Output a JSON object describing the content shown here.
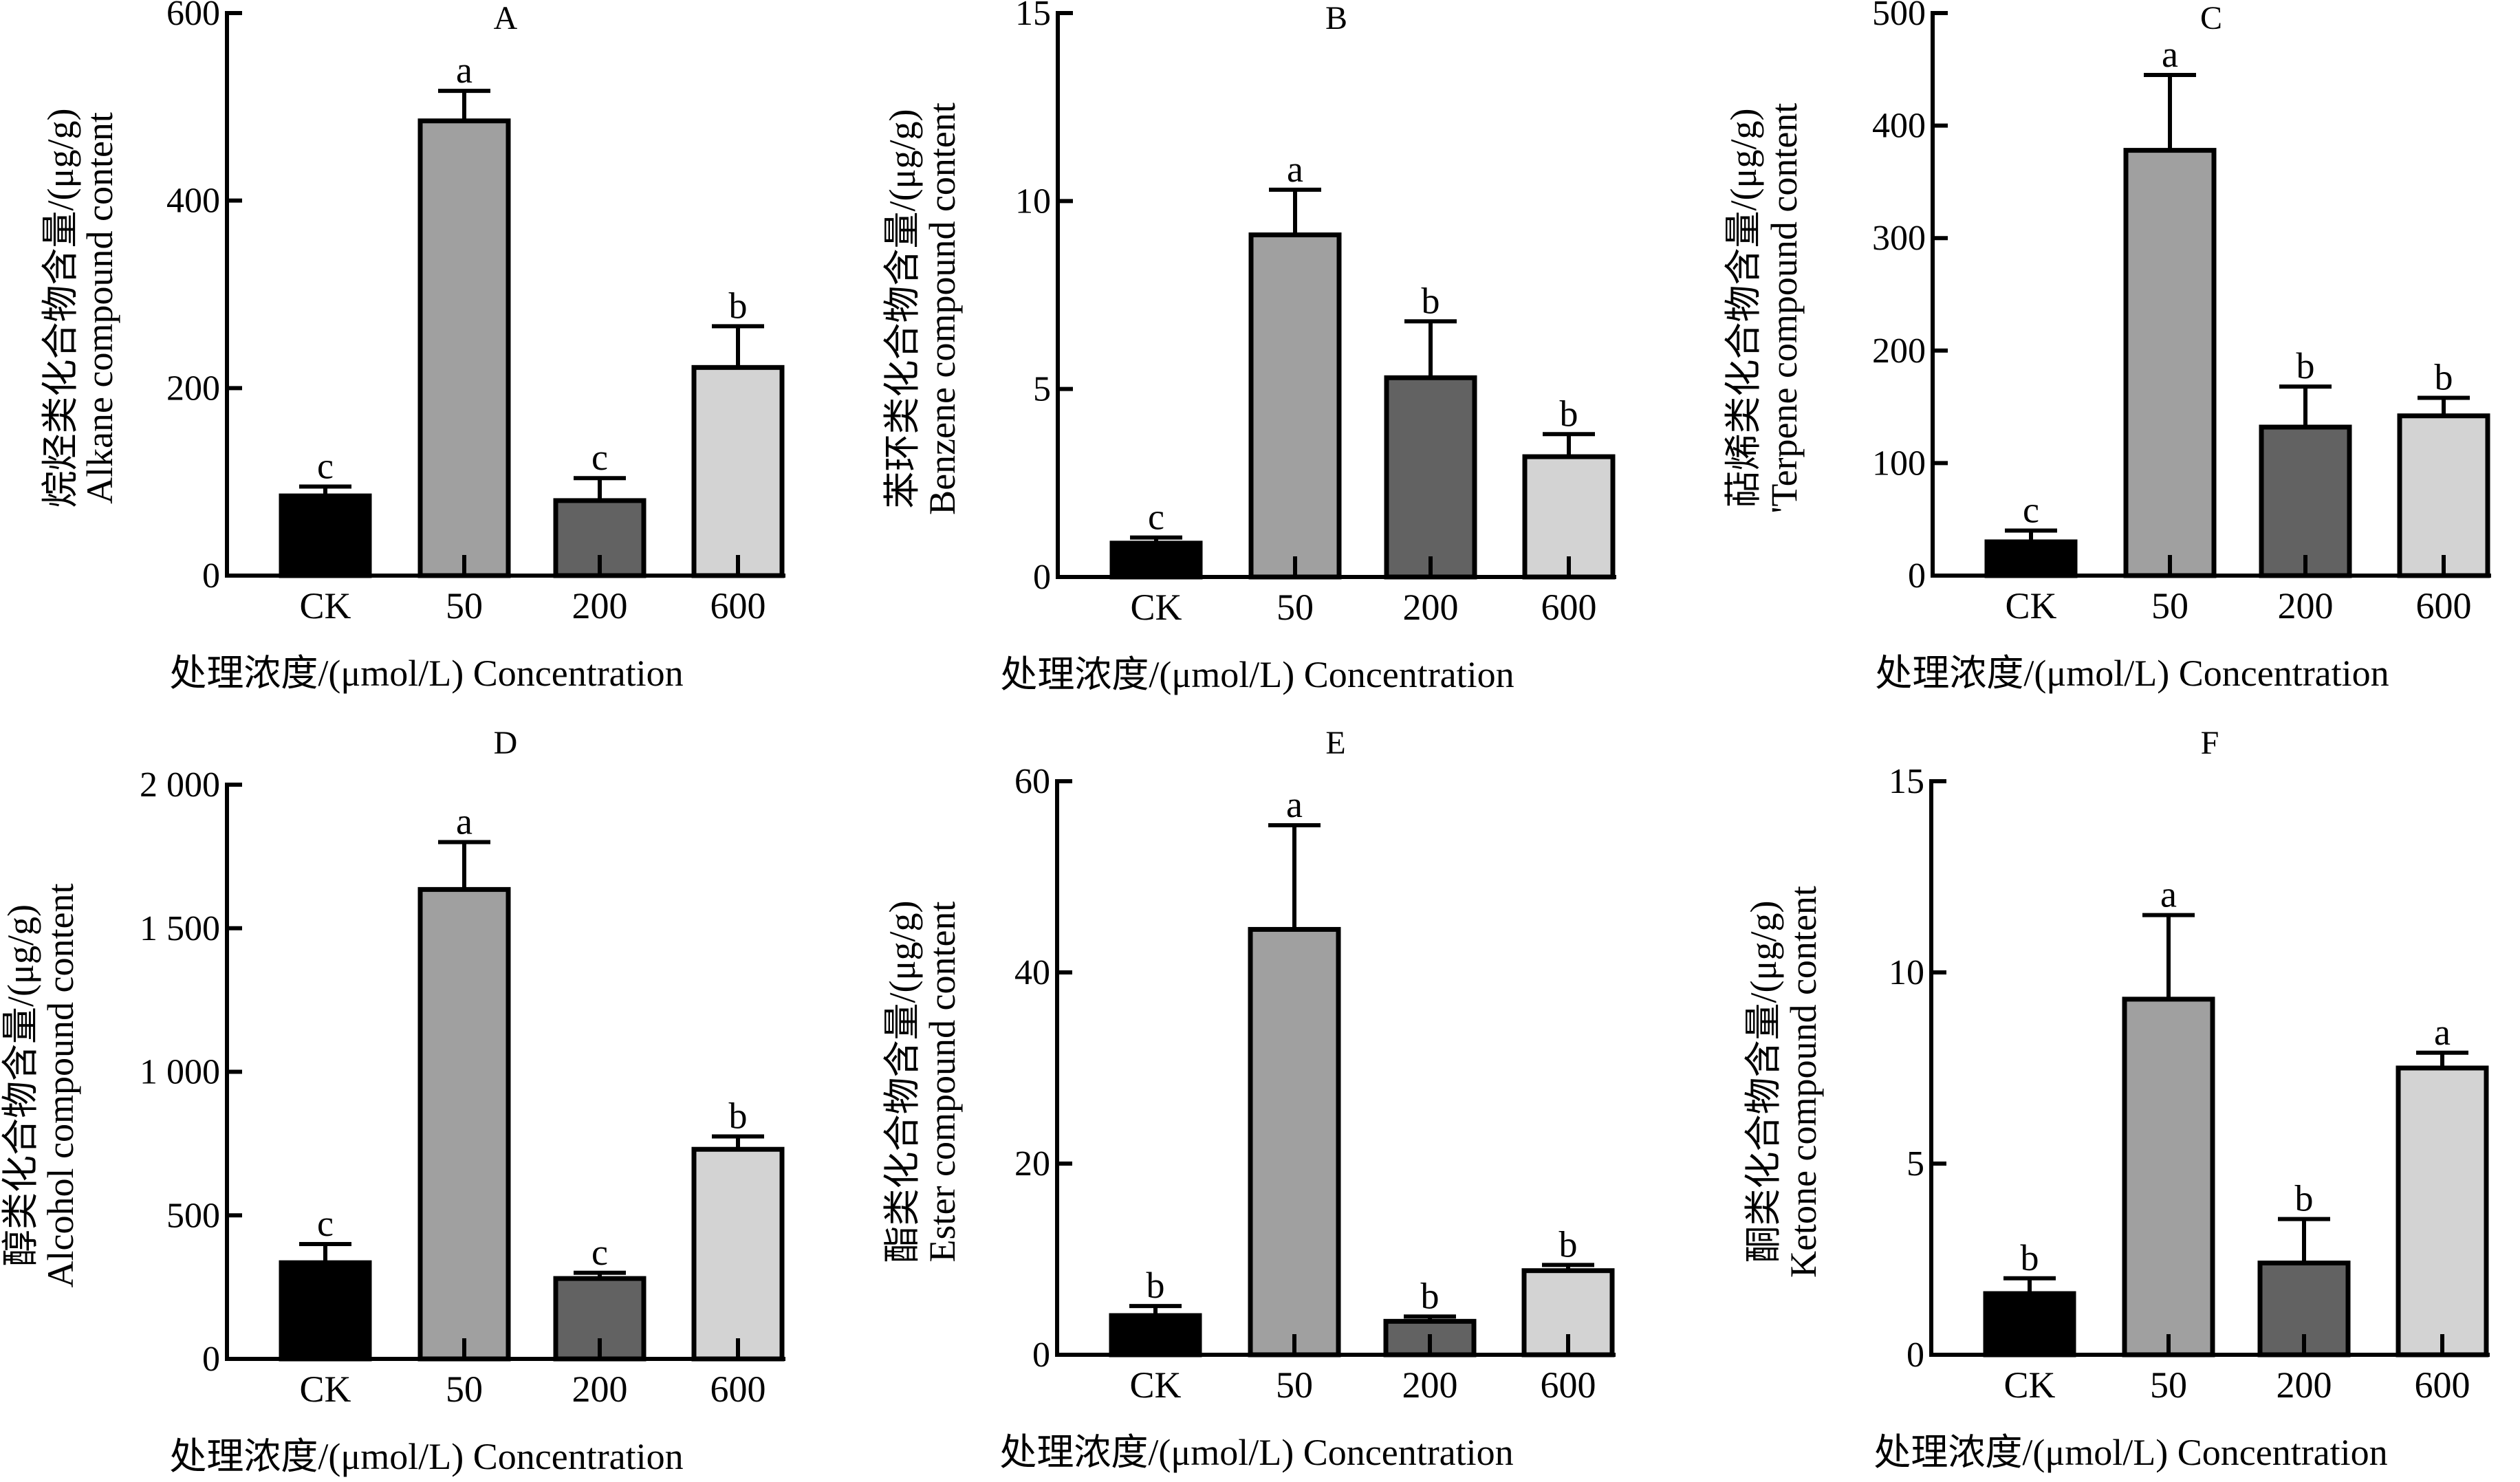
{
  "chart_data": [
    {
      "panel": "A",
      "type": "bar",
      "title": "A",
      "ylabel_cn": "烷烃类化合物含量/(μg/g)",
      "ylabel_en": "Alkane compound content",
      "xlabel": "处理浓度/(μmol/L)  Concentration",
      "categories": [
        "CK",
        "50",
        "200",
        "600"
      ],
      "values": [
        85,
        485,
        80,
        222
      ],
      "errors": [
        10,
        32,
        24,
        44
      ],
      "significance": [
        "c",
        "a",
        "c",
        "b"
      ],
      "ylim": [
        0,
        600
      ],
      "yticks": [
        0,
        200,
        400,
        600
      ],
      "ytick_labels": [
        "0",
        "200",
        "400",
        "600"
      ]
    },
    {
      "panel": "B",
      "type": "bar",
      "title": "B",
      "ylabel_cn": "苯环类化合物含量/(μg/g)",
      "ylabel_en": "Benzene compound content",
      "xlabel": "处理浓度/(μmol/L)  Concentration",
      "categories": [
        "CK",
        "50",
        "200",
        "600"
      ],
      "values": [
        0.9,
        9.1,
        5.3,
        3.2
      ],
      "errors": [
        0.15,
        1.2,
        1.5,
        0.6
      ],
      "significance": [
        "c",
        "a",
        "b",
        "b"
      ],
      "ylim": [
        0,
        15
      ],
      "yticks": [
        0,
        5,
        10,
        15
      ],
      "ytick_labels": [
        "0",
        "5",
        "10",
        "15"
      ]
    },
    {
      "panel": "C",
      "type": "bar",
      "title": "C",
      "ylabel_cn": "萜烯类化合物含量/(μg/g)",
      "ylabel_en": "'Terpene compound content",
      "xlabel": "处理浓度/(μmol/L)  Concentration",
      "categories": [
        "CK",
        "50",
        "200",
        "600"
      ],
      "values": [
        30,
        378,
        132,
        142
      ],
      "errors": [
        10,
        67,
        36,
        16
      ],
      "significance": [
        "c",
        "a",
        "b",
        "b"
      ],
      "ylim": [
        0,
        500
      ],
      "yticks": [
        0,
        100,
        200,
        300,
        400,
        500
      ],
      "ytick_labels": [
        "0",
        "100",
        "200",
        "300",
        "400",
        "500"
      ]
    },
    {
      "panel": "D",
      "type": "bar",
      "title": "D",
      "ylabel_cn": "醇类化合物含量/(μg/g)",
      "ylabel_en": "Alcohol compound content",
      "xlabel": "处理浓度/(μmol/L)  Concentration",
      "categories": [
        "CK",
        "50",
        "200",
        "600"
      ],
      "values": [
        335,
        1635,
        280,
        730
      ],
      "errors": [
        65,
        165,
        20,
        45
      ],
      "significance": [
        "c",
        "a",
        "c",
        "b"
      ],
      "ylim": [
        0,
        2000
      ],
      "yticks": [
        0,
        500,
        1000,
        1500,
        2000
      ],
      "ytick_labels": [
        "0",
        "500",
        "1 000",
        "1 500",
        "2 000"
      ]
    },
    {
      "panel": "E",
      "type": "bar",
      "title": "E",
      "ylabel_cn": "酯类化合物含量/(μg/g)",
      "ylabel_en": "Ester compound content",
      "xlabel": "处理浓度/(μmol/L)  Concentration",
      "categories": [
        "CK",
        "50",
        "200",
        "600"
      ],
      "values": [
        4.1,
        44.5,
        3.5,
        8.8
      ],
      "errors": [
        1.0,
        10.9,
        0.5,
        0.6
      ],
      "significance": [
        "b",
        "a",
        "b",
        "b"
      ],
      "ylim": [
        0,
        60
      ],
      "yticks": [
        0,
        20,
        40,
        60
      ],
      "ytick_labels": [
        "0",
        "20",
        "40",
        "60"
      ]
    },
    {
      "panel": "F",
      "type": "bar",
      "title": "F",
      "ylabel_cn": "酮类化合物含量/(μg/g)",
      "ylabel_en": "Ketone compound content",
      "xlabel": "处理浓度/(μmol/L)  Concentration",
      "categories": [
        "CK",
        "50",
        "200",
        "600"
      ],
      "values": [
        1.6,
        9.3,
        2.4,
        7.5
      ],
      "errors": [
        0.4,
        2.2,
        1.15,
        0.4
      ],
      "significance": [
        "b",
        "a",
        "b",
        "a"
      ],
      "ylim": [
        0,
        15
      ],
      "yticks": [
        0,
        5,
        10,
        15
      ],
      "ytick_labels": [
        "0",
        "5",
        "10",
        "15"
      ]
    }
  ],
  "bar_colors": {
    "CK": "#000000",
    "50": "#a0a0a0",
    "200": "#626262",
    "600": "#d3d3d3"
  }
}
